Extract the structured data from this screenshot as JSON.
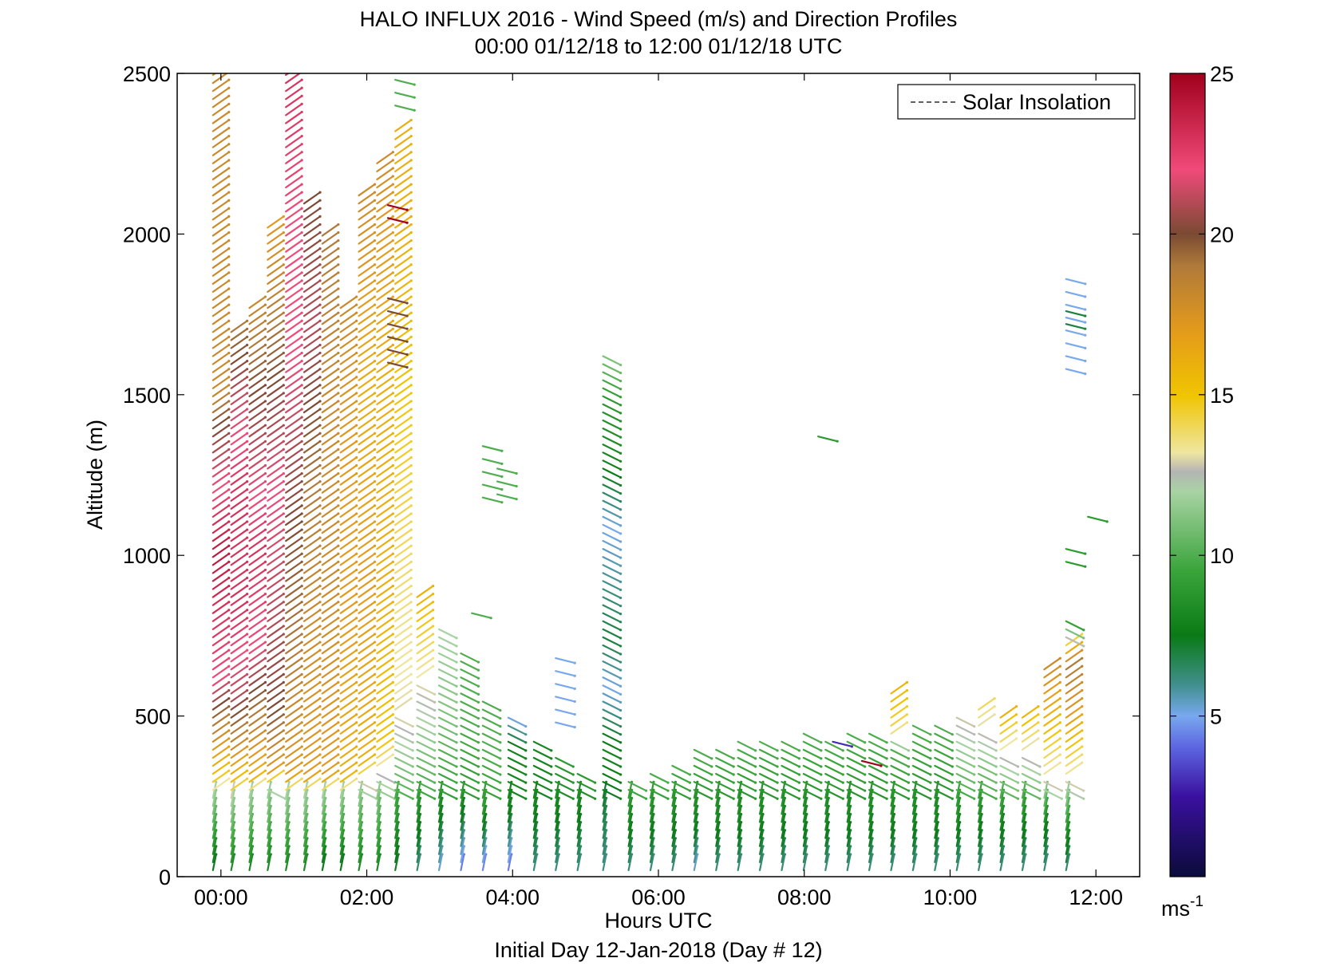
{
  "chart_data": {
    "type": "scatter",
    "title": "HALO INFLUX 2016 - Wind Speed (m/s) and Direction Profiles",
    "subtitle": "00:00 01/12/18 to 12:00 01/12/18  UTC",
    "xlabel": "Hours UTC",
    "footer": "Initial Day 12-Jan-2018 (Day # 12)",
    "ylabel": "Altitude (m)",
    "x_ticks": [
      "00:00",
      "02:00",
      "04:00",
      "06:00",
      "08:00",
      "10:00",
      "12:00"
    ],
    "x_tick_hours": [
      0,
      2,
      4,
      6,
      8,
      10,
      12
    ],
    "xlim_hours": [
      -0.6,
      12.6
    ],
    "ylim": [
      0,
      2500
    ],
    "y_ticks": [
      0,
      500,
      1000,
      1500,
      2000,
      2500
    ],
    "legend": {
      "label": "Solar Insolation",
      "placement": "top-right"
    },
    "colorbar": {
      "unit": "ms",
      "unit_exponent": "-1",
      "range": [
        0,
        25
      ],
      "ticks": [
        5,
        10,
        15,
        20,
        25
      ],
      "stops": [
        {
          "v": 0,
          "c": "#0b0b3a"
        },
        {
          "v": 2.5,
          "c": "#3a10a0"
        },
        {
          "v": 4,
          "c": "#5c64e0"
        },
        {
          "v": 5,
          "c": "#78a8ee"
        },
        {
          "v": 6,
          "c": "#3f8f8a"
        },
        {
          "v": 7.5,
          "c": "#0a7a16"
        },
        {
          "v": 9.5,
          "c": "#39a43a"
        },
        {
          "v": 12,
          "c": "#a9d3a4"
        },
        {
          "v": 12.6,
          "c": "#b4b4b4"
        },
        {
          "v": 13.2,
          "c": "#efe6a0"
        },
        {
          "v": 15,
          "c": "#f0c400"
        },
        {
          "v": 17,
          "c": "#e39a1c"
        },
        {
          "v": 19,
          "c": "#b07a3a"
        },
        {
          "v": 20,
          "c": "#7a4a33"
        },
        {
          "v": 22,
          "c": "#f04a7a"
        },
        {
          "v": 25,
          "c": "#a1001c"
        }
      ]
    },
    "profiles": [
      {
        "t": 0.0,
        "alt": [
          0,
          2500,
          2510
        ],
        "ws": [
          [
            0,
            7
          ],
          [
            250,
            12
          ],
          [
            300,
            15
          ],
          [
            520,
            20
          ],
          [
            600,
            22
          ],
          [
            1000,
            24
          ],
          [
            1400,
            20
          ],
          [
            1500,
            18
          ]
        ]
      },
      {
        "t": 0.25,
        "alt": [
          0,
          1700,
          1700
        ],
        "ws": [
          [
            0,
            8
          ],
          [
            230,
            12
          ],
          [
            280,
            15
          ],
          [
            400,
            18
          ],
          [
            550,
            21
          ],
          [
            800,
            23
          ],
          [
            1200,
            23
          ],
          [
            1500,
            21
          ],
          [
            1700,
            19
          ]
        ]
      },
      {
        "t": 0.5,
        "alt": [
          0,
          1780,
          1780
        ],
        "ws": [
          [
            0,
            8
          ],
          [
            250,
            12
          ],
          [
            300,
            16
          ],
          [
            500,
            19
          ],
          [
            700,
            22
          ],
          [
            1000,
            23
          ],
          [
            1500,
            20
          ],
          [
            1780,
            18
          ]
        ]
      },
      {
        "t": 0.75,
        "alt": [
          0,
          2040,
          2040
        ],
        "ws": [
          [
            0,
            8
          ],
          [
            270,
            12
          ],
          [
            320,
            17
          ],
          [
            500,
            20
          ],
          [
            800,
            21
          ],
          [
            1200,
            22
          ],
          [
            1700,
            19
          ],
          [
            2040,
            17
          ]
        ]
      },
      {
        "t": 1.0,
        "alt": [
          0,
          2500,
          2500
        ],
        "ws": [
          [
            0,
            8
          ],
          [
            250,
            12
          ],
          [
            300,
            17
          ],
          [
            700,
            19
          ],
          [
            1100,
            20
          ],
          [
            1600,
            22
          ],
          [
            2000,
            22
          ],
          [
            2500,
            23
          ]
        ]
      },
      {
        "t": 1.25,
        "alt": [
          0,
          2100,
          2100
        ],
        "ws": [
          [
            0,
            8
          ],
          [
            250,
            12
          ],
          [
            300,
            17
          ],
          [
            800,
            18
          ],
          [
            1200,
            19
          ],
          [
            1700,
            21
          ],
          [
            2100,
            20
          ]
        ]
      },
      {
        "t": 1.5,
        "alt": [
          0,
          2000,
          2000
        ],
        "ws": [
          [
            0,
            7
          ],
          [
            250,
            12
          ],
          [
            300,
            17
          ],
          [
            900,
            18
          ],
          [
            1400,
            18
          ],
          [
            2000,
            19
          ]
        ]
      },
      {
        "t": 1.75,
        "alt": [
          0,
          1780,
          1780
        ],
        "ws": [
          [
            0,
            7
          ],
          [
            250,
            12
          ],
          [
            300,
            16
          ],
          [
            800,
            17
          ],
          [
            1300,
            17
          ],
          [
            1780,
            18
          ]
        ]
      },
      {
        "t": 2.0,
        "alt": [
          0,
          2140,
          2140
        ],
        "ws": [
          [
            0,
            8
          ],
          [
            280,
            12
          ],
          [
            350,
            16
          ],
          [
            900,
            17
          ],
          [
            1500,
            16
          ],
          [
            2140,
            18
          ]
        ]
      },
      {
        "t": 2.25,
        "alt": [
          0,
          2240,
          2240
        ],
        "ws": [
          [
            0,
            8
          ],
          [
            300,
            12
          ],
          [
            400,
            15
          ],
          [
            900,
            16
          ],
          [
            1500,
            16
          ],
          [
            2000,
            17
          ],
          [
            2240,
            18
          ]
        ]
      },
      {
        "t": 2.5,
        "alt": [
          0,
          2330,
          2330
        ],
        "ws": [
          [
            0,
            7
          ],
          [
            350,
            11
          ],
          [
            500,
            13
          ],
          [
            1000,
            14
          ],
          [
            1500,
            15
          ],
          [
            2000,
            16
          ],
          [
            2330,
            16
          ]
        ]
      },
      {
        "t": 2.8,
        "alt": [
          0,
          880,
          880
        ],
        "ws": [
          [
            0,
            6
          ],
          [
            300,
            10
          ],
          [
            500,
            12
          ],
          [
            700,
            14
          ],
          [
            880,
            16
          ]
        ]
      },
      {
        "t": 3.1,
        "alt": [
          0,
          780,
          780
        ],
        "ws": [
          [
            0,
            5
          ],
          [
            250,
            9
          ],
          [
            500,
            11
          ],
          [
            780,
            12
          ]
        ]
      },
      {
        "t": 3.4,
        "alt": [
          0,
          700,
          700
        ],
        "ws": [
          [
            0,
            4
          ],
          [
            250,
            9
          ],
          [
            500,
            10
          ],
          [
            700,
            10
          ]
        ]
      },
      {
        "t": 3.7,
        "alt": [
          0,
          550,
          550
        ],
        "ws": [
          [
            0,
            4
          ],
          [
            200,
            9
          ],
          [
            400,
            10
          ],
          [
            550,
            10
          ]
        ]
      },
      {
        "t": 4.05,
        "alt": [
          0,
          500,
          500
        ],
        "ws": [
          [
            0,
            4
          ],
          [
            200,
            8
          ],
          [
            400,
            8
          ],
          [
            500,
            5
          ]
        ]
      },
      {
        "t": 4.4,
        "alt": [
          0,
          420,
          420
        ],
        "ws": [
          [
            0,
            6
          ],
          [
            200,
            8
          ],
          [
            420,
            8
          ]
        ]
      },
      {
        "t": 4.7,
        "alt": [
          0,
          370,
          370
        ],
        "ws": [
          [
            0,
            6
          ],
          [
            200,
            8
          ],
          [
            370,
            9
          ]
        ]
      },
      {
        "t": 5.0,
        "alt": [
          0,
          330,
          330
        ],
        "ws": [
          [
            0,
            6
          ],
          [
            200,
            8
          ],
          [
            330,
            9
          ]
        ]
      },
      {
        "t": 5.35,
        "alt": [
          0,
          1620,
          1620
        ],
        "ws": [
          [
            0,
            6
          ],
          [
            400,
            8
          ],
          [
            600,
            5
          ],
          [
            750,
            7
          ],
          [
            1100,
            5
          ],
          [
            1300,
            8
          ],
          [
            1500,
            9
          ],
          [
            1620,
            11
          ]
        ]
      },
      {
        "t": 5.7,
        "alt": [
          0,
          300,
          300
        ],
        "ws": [
          [
            0,
            6
          ],
          [
            150,
            8
          ],
          [
            300,
            10
          ]
        ]
      },
      {
        "t": 6.0,
        "alt": [
          0,
          330,
          330
        ],
        "ws": [
          [
            0,
            6
          ],
          [
            150,
            8
          ],
          [
            330,
            10
          ]
        ]
      },
      {
        "t": 6.3,
        "alt": [
          0,
          360,
          360
        ],
        "ws": [
          [
            0,
            6
          ],
          [
            150,
            8
          ],
          [
            360,
            10
          ]
        ]
      },
      {
        "t": 6.6,
        "alt": [
          0,
          400,
          400
        ],
        "ws": [
          [
            0,
            5
          ],
          [
            150,
            8
          ],
          [
            400,
            10
          ]
        ]
      },
      {
        "t": 6.9,
        "alt": [
          0,
          410,
          410
        ],
        "ws": [
          [
            0,
            6
          ],
          [
            150,
            8
          ],
          [
            410,
            10
          ]
        ]
      },
      {
        "t": 7.2,
        "alt": [
          0,
          420,
          420
        ],
        "ws": [
          [
            0,
            6
          ],
          [
            150,
            8
          ],
          [
            420,
            10
          ]
        ]
      },
      {
        "t": 7.5,
        "alt": [
          0,
          430,
          430
        ],
        "ws": [
          [
            0,
            6
          ],
          [
            150,
            8
          ],
          [
            430,
            10
          ]
        ]
      },
      {
        "t": 7.8,
        "alt": [
          0,
          440,
          440
        ],
        "ws": [
          [
            0,
            6
          ],
          [
            150,
            8
          ],
          [
            440,
            10
          ]
        ]
      },
      {
        "t": 8.1,
        "alt": [
          0,
          450,
          450
        ],
        "ws": [
          [
            0,
            6
          ],
          [
            150,
            8
          ],
          [
            450,
            10
          ]
        ]
      },
      {
        "t": 8.4,
        "alt": [
          0,
          440,
          440
        ],
        "ws": [
          [
            0,
            6
          ],
          [
            150,
            8
          ],
          [
            440,
            10
          ]
        ]
      },
      {
        "t": 8.7,
        "alt": [
          0,
          450,
          450
        ],
        "ws": [
          [
            0,
            6
          ],
          [
            150,
            8
          ],
          [
            450,
            10
          ]
        ]
      },
      {
        "t": 9.0,
        "alt": [
          0,
          450,
          450
        ],
        "ws": [
          [
            0,
            6
          ],
          [
            150,
            8
          ],
          [
            450,
            10
          ]
        ]
      },
      {
        "t": 9.3,
        "alt": [
          0,
          590,
          590
        ],
        "ws": [
          [
            0,
            6
          ],
          [
            150,
            8
          ],
          [
            400,
            10
          ],
          [
            450,
            14
          ],
          [
            590,
            16
          ]
        ]
      },
      {
        "t": 9.6,
        "alt": [
          0,
          470,
          470
        ],
        "ws": [
          [
            0,
            6
          ],
          [
            150,
            8
          ],
          [
            470,
            10
          ]
        ]
      },
      {
        "t": 9.9,
        "alt": [
          0,
          470,
          470
        ],
        "ws": [
          [
            0,
            6
          ],
          [
            150,
            8
          ],
          [
            470,
            10
          ]
        ]
      },
      {
        "t": 10.2,
        "alt": [
          0,
          510,
          510
        ],
        "ws": [
          [
            0,
            6
          ],
          [
            150,
            8
          ],
          [
            350,
            11
          ],
          [
            510,
            13
          ]
        ]
      },
      {
        "t": 10.5,
        "alt": [
          0,
          520,
          520
        ],
        "ws": [
          [
            0,
            6
          ],
          [
            150,
            8
          ],
          [
            350,
            11
          ],
          [
            520,
            14
          ]
        ]
      },
      {
        "t": 10.8,
        "alt": [
          0,
          500,
          500
        ],
        "ws": [
          [
            0,
            6
          ],
          [
            150,
            8
          ],
          [
            350,
            12
          ],
          [
            500,
            16
          ]
        ]
      },
      {
        "t": 11.1,
        "alt": [
          0,
          510,
          510
        ],
        "ws": [
          [
            0,
            6
          ],
          [
            150,
            8
          ],
          [
            350,
            12
          ],
          [
            510,
            16
          ]
        ]
      },
      {
        "t": 11.4,
        "alt": [
          0,
          650,
          650
        ],
        "ws": [
          [
            0,
            6
          ],
          [
            150,
            8
          ],
          [
            300,
            13
          ],
          [
            500,
            16
          ],
          [
            650,
            18
          ]
        ]
      },
      {
        "t": 11.7,
        "alt": [
          0,
          800,
          800
        ],
        "ws": [
          [
            0,
            6
          ],
          [
            150,
            9
          ],
          [
            300,
            13
          ],
          [
            500,
            17
          ],
          [
            650,
            19
          ],
          [
            800,
            9
          ]
        ]
      }
    ],
    "isolated": [
      {
        "t": 3.7,
        "alt": [
          1180,
          1340
        ],
        "ws": 10
      },
      {
        "t": 3.9,
        "alt": [
          1190,
          1300
        ],
        "ws": 10
      },
      {
        "t": 3.55,
        "alt": [
          820,
          830
        ],
        "ws": 10
      },
      {
        "t": 4.7,
        "alt": [
          480,
          700
        ],
        "ws": 5
      },
      {
        "t": 2.5,
        "alt": [
          2400,
          2500
        ],
        "ws": 10
      },
      {
        "t": 2.4,
        "alt": [
          1600,
          1830
        ],
        "ws": 20
      },
      {
        "t": 2.4,
        "alt": [
          2050,
          2100
        ],
        "ws": 25
      },
      {
        "t": 8.3,
        "alt": [
          1370,
          1400
        ],
        "ws": 9
      },
      {
        "t": 8.5,
        "alt": [
          420,
          430
        ],
        "ws": 3
      },
      {
        "t": 8.9,
        "alt": [
          360,
          375
        ],
        "ws": 25
      },
      {
        "t": 11.7,
        "alt": [
          1580,
          1870
        ],
        "ws": 5
      },
      {
        "t": 11.7,
        "alt": [
          1720,
          1780
        ],
        "ws": 7
      },
      {
        "t": 11.7,
        "alt": [
          980,
          1030
        ],
        "ws": 9
      },
      {
        "t": 12.0,
        "alt": [
          1120,
          1150
        ],
        "ws": 9
      }
    ]
  }
}
